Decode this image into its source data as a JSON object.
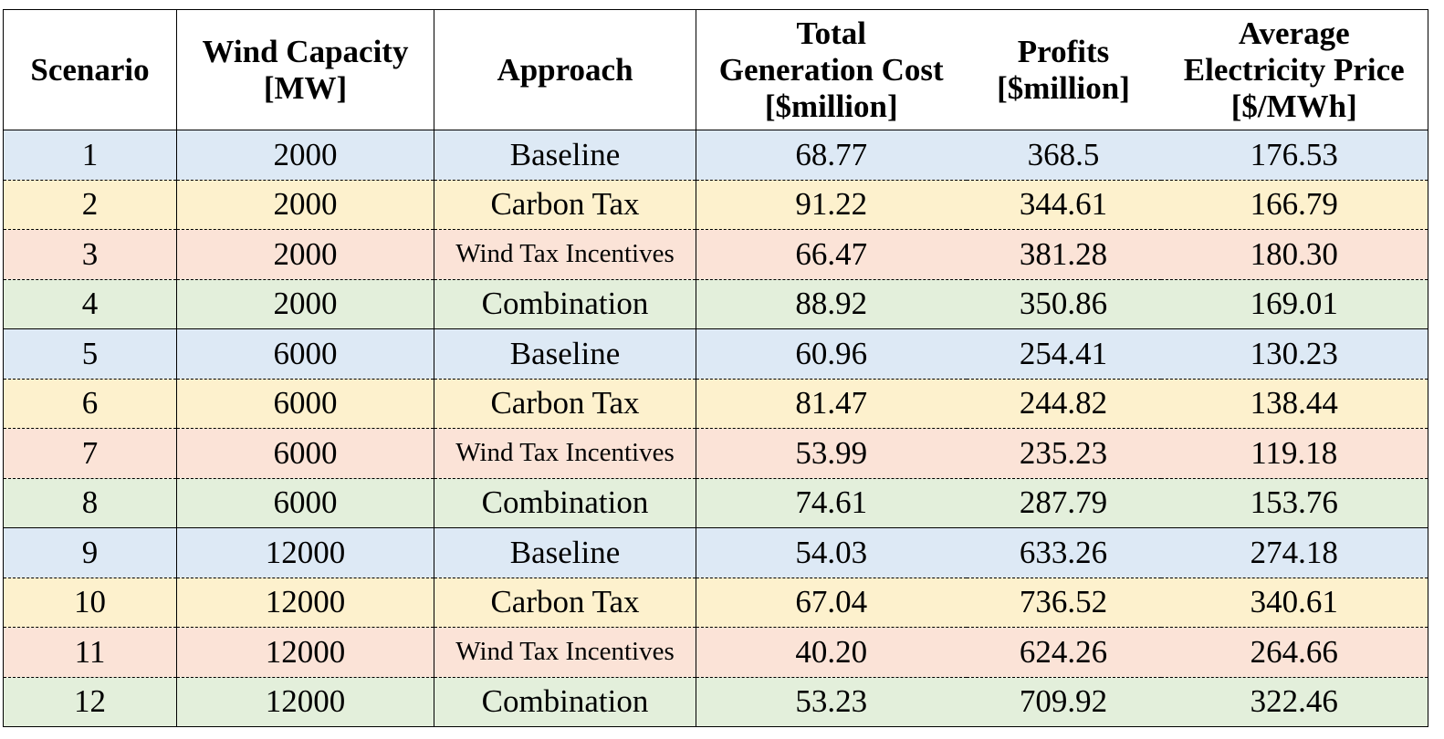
{
  "chart_data": {
    "type": "table",
    "columns": [
      "Scenario",
      "Wind Capacity [MW]",
      "Approach",
      "Total Generation Cost [$million]",
      "Profits [$million]",
      "Average Electricity Price [$/MWh]"
    ],
    "header_lines": [
      [
        "Scenario"
      ],
      [
        "Wind Capacity",
        "[MW]"
      ],
      [
        "Approach"
      ],
      [
        "Total",
        "Generation Cost",
        "[$million]"
      ],
      [
        "Profits",
        "[$million]"
      ],
      [
        "Average",
        "Electricity Price",
        "[$/MWh]"
      ]
    ],
    "rows": [
      [
        "1",
        "2000",
        "Baseline",
        "68.77",
        "368.5",
        "176.53"
      ],
      [
        "2",
        "2000",
        "Carbon Tax",
        "91.22",
        "344.61",
        "166.79"
      ],
      [
        "3",
        "2000",
        "Wind Tax Incentives",
        "66.47",
        "381.28",
        "180.30"
      ],
      [
        "4",
        "2000",
        "Combination",
        "88.92",
        "350.86",
        "169.01"
      ],
      [
        "5",
        "6000",
        "Baseline",
        "60.96",
        "254.41",
        "130.23"
      ],
      [
        "6",
        "6000",
        "Carbon Tax",
        "81.47",
        "244.82",
        "138.44"
      ],
      [
        "7",
        "6000",
        "Wind Tax Incentives",
        "53.99",
        "235.23",
        "119.18"
      ],
      [
        "8",
        "6000",
        "Combination",
        "74.61",
        "287.79",
        "153.76"
      ],
      [
        "9",
        "12000",
        "Baseline",
        "54.03",
        "633.26",
        "274.18"
      ],
      [
        "10",
        "12000",
        "Carbon Tax",
        "67.04",
        "736.52",
        "340.61"
      ],
      [
        "11",
        "12000",
        "Wind Tax Incentives",
        "40.20",
        "624.26",
        "264.66"
      ],
      [
        "12",
        "12000",
        "Combination",
        "53.23",
        "709.92",
        "322.46"
      ]
    ],
    "approach_colors": {
      "Baseline": "#dde9f5",
      "Carbon Tax": "#fdf1cd",
      "Wind Tax Incentives": "#fbe3d7",
      "Combination": "#e3efdb"
    }
  }
}
